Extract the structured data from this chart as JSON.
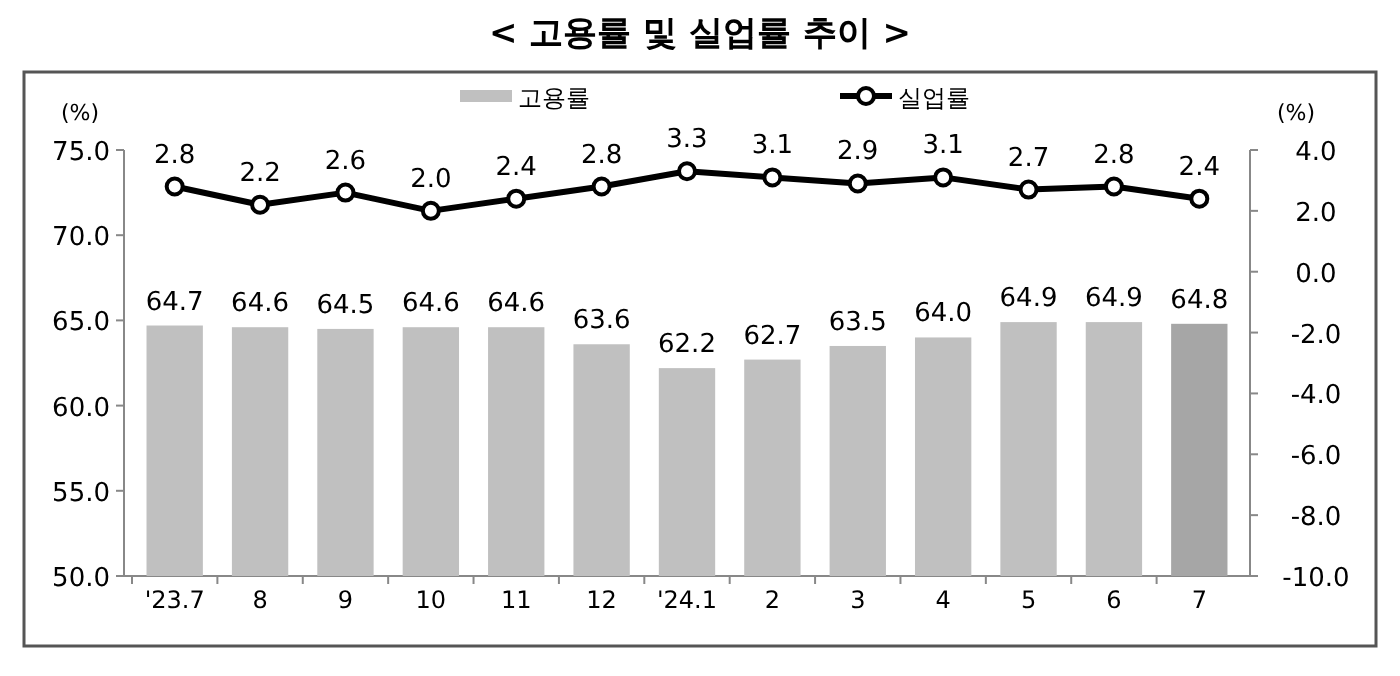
{
  "chart_data": {
    "type": "bar",
    "title": "< 고용률 및 실업률 추이 >",
    "ylabel": "(%)",
    "y2label": "(%)",
    "categories": [
      "'23.7",
      "8",
      "9",
      "10",
      "11",
      "12",
      "'24.1",
      "2",
      "3",
      "4",
      "5",
      "6",
      "7"
    ],
    "series": [
      {
        "name": "고용률",
        "color": "#c0c0c0",
        "colors": [
          "#c0c0c0",
          "#c0c0c0",
          "#c0c0c0",
          "#c0c0c0",
          "#c0c0c0",
          "#c0c0c0",
          "#c0c0c0",
          "#c0c0c0",
          "#c0c0c0",
          "#c0c0c0",
          "#c0c0c0",
          "#c0c0c0",
          "#a6a6a6"
        ],
        "values": [
          64.7,
          64.6,
          64.5,
          64.6,
          64.6,
          63.6,
          62.2,
          62.7,
          63.5,
          64.0,
          64.9,
          64.9,
          64.8
        ],
        "value_labels": [
          "64.7",
          "64.6",
          "64.5",
          "64.6",
          "64.6",
          "63.6",
          "62.2",
          "62.7",
          "63.5",
          "64.0",
          "64.9",
          "64.9",
          "64.8"
        ]
      },
      {
        "name": "실업률",
        "type": "line",
        "axis": "y2",
        "color": "#000000",
        "marker": "circle",
        "values": [
          2.8,
          2.2,
          2.6,
          2.0,
          2.4,
          2.8,
          3.3,
          3.1,
          2.9,
          3.1,
          2.7,
          2.8,
          2.4
        ],
        "value_labels": [
          "2.8",
          "2.2",
          "2.6",
          "2.0",
          "2.4",
          "2.8",
          "3.3",
          "3.1",
          "2.9",
          "3.1",
          "2.7",
          "2.8",
          "2.4"
        ]
      }
    ],
    "ylim": [
      50,
      75
    ],
    "yticks": [
      {
        "value": 50,
        "label": "50.0"
      },
      {
        "value": 55,
        "label": "55.0"
      },
      {
        "value": 60,
        "label": "60.0"
      },
      {
        "value": 65,
        "label": "65.0"
      },
      {
        "value": 70,
        "label": "70.0"
      },
      {
        "value": 75,
        "label": "75.0"
      }
    ],
    "y2lim": [
      -10,
      4
    ],
    "y2ticks": [
      {
        "value": -10,
        "label": "-10.0"
      },
      {
        "value": -8,
        "label": "-8.0"
      },
      {
        "value": -6,
        "label": "-6.0"
      },
      {
        "value": -4,
        "label": "-4.0"
      },
      {
        "value": -2,
        "label": "-2.0"
      },
      {
        "value": 0,
        "label": "0.0"
      },
      {
        "value": 2,
        "label": "2.0"
      },
      {
        "value": 4,
        "label": "4.0"
      }
    ],
    "legend": "top"
  }
}
